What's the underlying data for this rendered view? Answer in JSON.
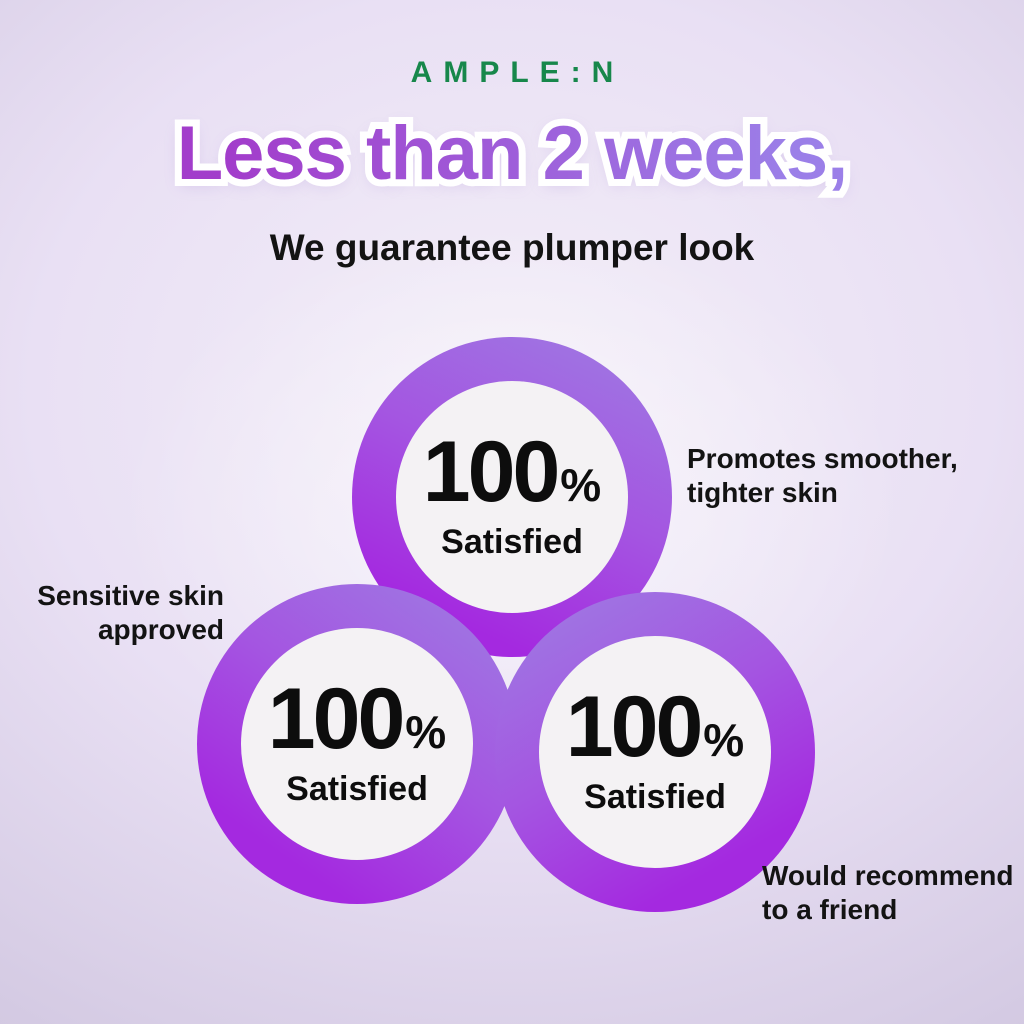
{
  "brand": {
    "name": "AMPLE:N"
  },
  "header": {
    "headline": "Less than 2 weeks,",
    "subheadline": "We guarantee plumper look"
  },
  "stats": [
    {
      "position": "top",
      "value": "100",
      "unit": "%",
      "label": "Satisfied"
    },
    {
      "position": "bottom-left",
      "value": "100",
      "unit": "%",
      "label": "Satisfied"
    },
    {
      "position": "bottom-right",
      "value": "100",
      "unit": "%",
      "label": "Satisfied"
    }
  ],
  "callouts": [
    {
      "line1": "Promotes smoother,",
      "line2": "tighter skin"
    },
    {
      "line1": "Sensitive skin",
      "line2": "approved"
    },
    {
      "line1": "Would recommend",
      "line2": "to a friend"
    }
  ],
  "colors": {
    "brand_green": "#17874b",
    "headline_gradient_left": "#a23dcb",
    "headline_gradient_right": "#9b7fe8",
    "ring_light": "#9f77e2",
    "ring_mid": "#a455e1",
    "ring_vivid": "#a429e0",
    "background_lavender": "#e9e0f4",
    "background_edge": "#d3c9e2",
    "circle_inner": "#f4f2f4",
    "text_dark": "#131313"
  }
}
